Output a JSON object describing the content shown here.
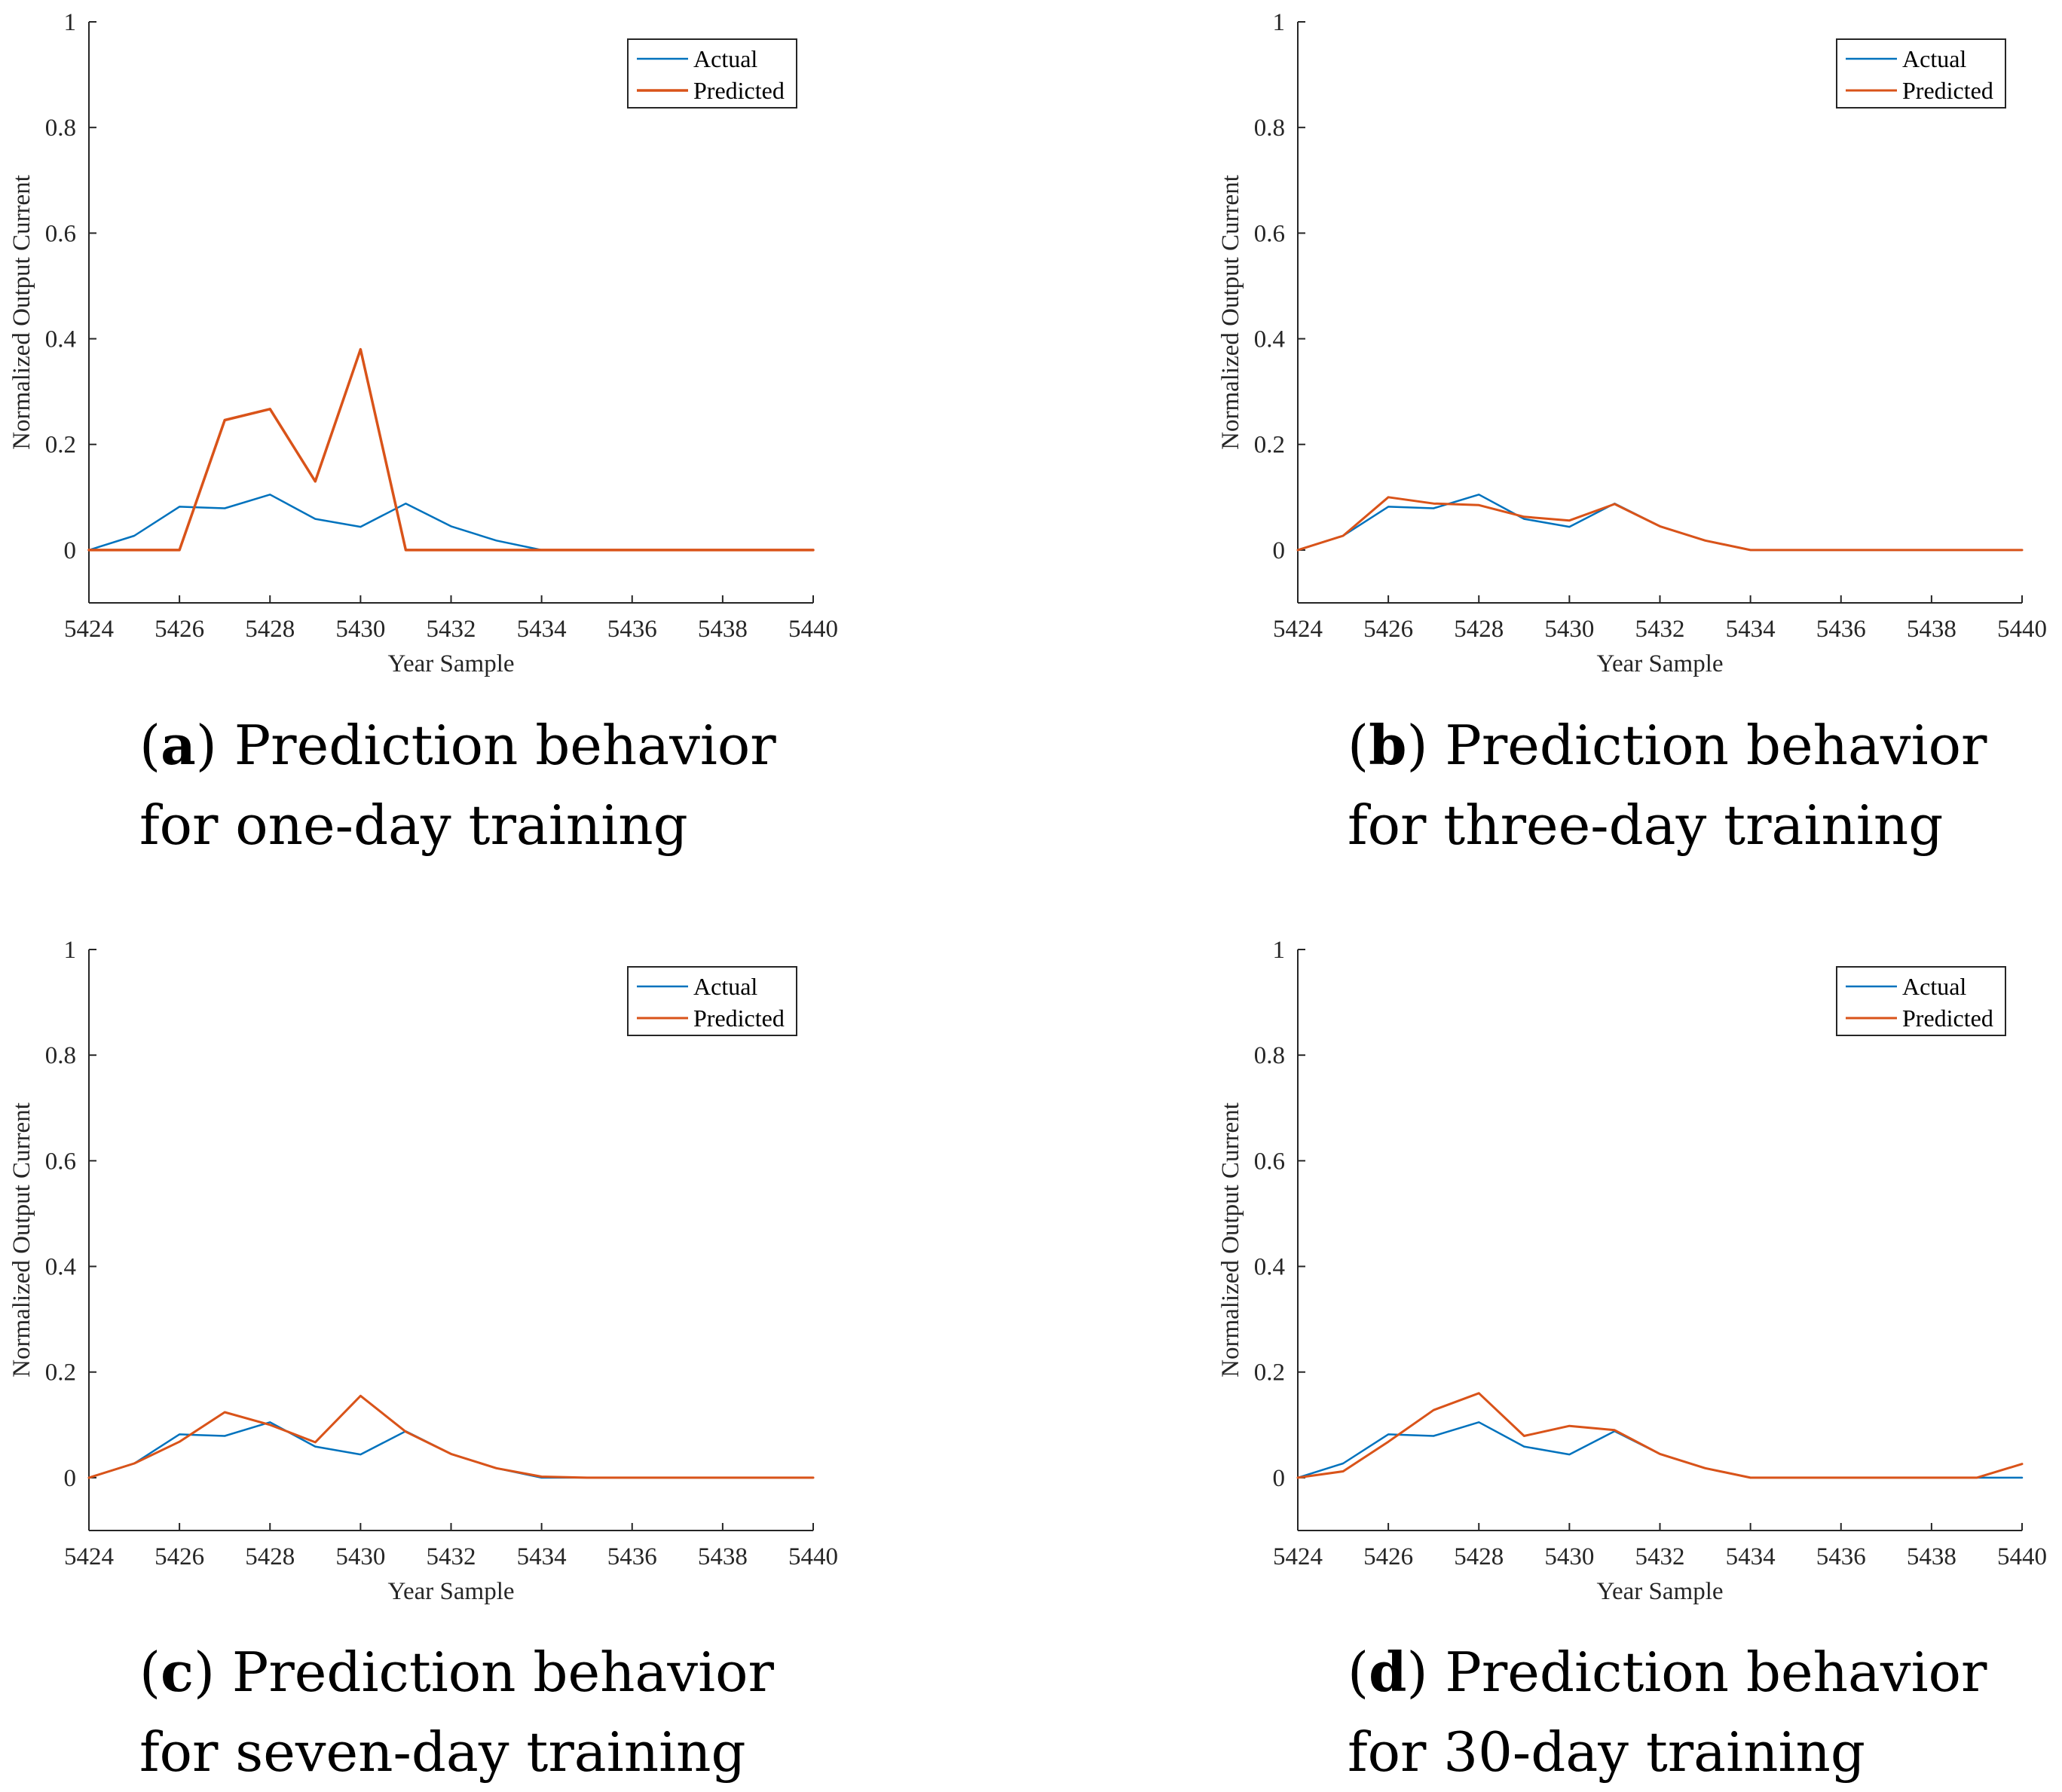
{
  "colors": {
    "actual": "#0072BD",
    "predicted": "#D95319",
    "axis": "#262626"
  },
  "captions": [
    {
      "letter": "a",
      "line1": "Prediction behavior",
      "line2": "for one-day training"
    },
    {
      "letter": "b",
      "line1": "Prediction behavior",
      "line2": "for three-day training"
    },
    {
      "letter": "c",
      "line1": "Prediction behavior",
      "line2": "for seven-day training"
    },
    {
      "letter": "d",
      "line1": "Prediction behavior",
      "line2": "for 30-day training"
    }
  ],
  "chart_data": [
    {
      "type": "line",
      "id": "a",
      "xlabel": "Year Sample",
      "ylabel": "Normalized Output Current",
      "xlim": [
        5424,
        5440
      ],
      "ylim": [
        -0.1,
        1
      ],
      "xticks": [
        5424,
        5426,
        5428,
        5430,
        5432,
        5434,
        5436,
        5438,
        5440
      ],
      "yticks": [
        0,
        0.2,
        0.4,
        0.6,
        0.8,
        1
      ],
      "ytick_labels": [
        "0",
        "0.2",
        "0.4",
        "0.6",
        "0.8",
        "1"
      ],
      "legend_position": "top-right",
      "x": [
        5424,
        5425,
        5426,
        5427,
        5428,
        5429,
        5430,
        5431,
        5432,
        5433,
        5434,
        5435,
        5436,
        5437,
        5438,
        5439,
        5440
      ],
      "series": [
        {
          "name": "Actual",
          "values": [
            0,
            0.027,
            0.082,
            0.079,
            0.105,
            0.059,
            0.044,
            0.088,
            0.045,
            0.018,
            0,
            0,
            0,
            0,
            0,
            0,
            0
          ]
        },
        {
          "name": "Predicted",
          "values": [
            0,
            0,
            0,
            0.246,
            0.267,
            0.13,
            0.38,
            0,
            0,
            0,
            0,
            0,
            0,
            0,
            0,
            0,
            0
          ]
        }
      ]
    },
    {
      "type": "line",
      "id": "b",
      "xlabel": "Year Sample",
      "ylabel": "Normalized Output Current",
      "xlim": [
        5424,
        5440
      ],
      "ylim": [
        -0.1,
        1
      ],
      "xticks": [
        5424,
        5426,
        5428,
        5430,
        5432,
        5434,
        5436,
        5438,
        5440
      ],
      "yticks": [
        0,
        0.2,
        0.4,
        0.6,
        0.8,
        1
      ],
      "ytick_labels": [
        "0",
        "0.2",
        "0.4",
        "0.6",
        "0.8",
        "1"
      ],
      "legend_position": "top-right",
      "x": [
        5424,
        5425,
        5426,
        5427,
        5428,
        5429,
        5430,
        5431,
        5432,
        5433,
        5434,
        5435,
        5436,
        5437,
        5438,
        5439,
        5440
      ],
      "series": [
        {
          "name": "Actual",
          "values": [
            0,
            0.027,
            0.082,
            0.079,
            0.105,
            0.059,
            0.044,
            0.088,
            0.045,
            0.018,
            0,
            0,
            0,
            0,
            0,
            0,
            0
          ]
        },
        {
          "name": "Predicted",
          "values": [
            0,
            0.027,
            0.1,
            0.088,
            0.085,
            0.063,
            0.056,
            0.087,
            0.045,
            0.018,
            0,
            0,
            0,
            0,
            0,
            0,
            0
          ]
        }
      ]
    },
    {
      "type": "line",
      "id": "c",
      "xlabel": "Year Sample",
      "ylabel": "Normalized Output Current",
      "xlim": [
        5424,
        5440
      ],
      "ylim": [
        -0.1,
        1
      ],
      "xticks": [
        5424,
        5426,
        5428,
        5430,
        5432,
        5434,
        5436,
        5438,
        5440
      ],
      "yticks": [
        0,
        0.2,
        0.4,
        0.6,
        0.8,
        1
      ],
      "ytick_labels": [
        "0",
        "0.2",
        "0.4",
        "0.6",
        "0.8",
        "1"
      ],
      "legend_position": "top-right",
      "x": [
        5424,
        5425,
        5426,
        5427,
        5428,
        5429,
        5430,
        5431,
        5432,
        5433,
        5434,
        5435,
        5436,
        5437,
        5438,
        5439,
        5440
      ],
      "series": [
        {
          "name": "Actual",
          "values": [
            0,
            0.027,
            0.082,
            0.079,
            0.105,
            0.059,
            0.044,
            0.088,
            0.045,
            0.018,
            0,
            0,
            0,
            0,
            0,
            0,
            0
          ]
        },
        {
          "name": "Predicted",
          "values": [
            0,
            0.027,
            0.068,
            0.124,
            0.1,
            0.067,
            0.155,
            0.087,
            0.045,
            0.018,
            0.002,
            0,
            0,
            0,
            0,
            0,
            0
          ]
        }
      ]
    },
    {
      "type": "line",
      "id": "d",
      "xlabel": "Year Sample",
      "ylabel": "Normalized Output Current",
      "xlim": [
        5424,
        5440
      ],
      "ylim": [
        -0.1,
        1
      ],
      "xticks": [
        5424,
        5426,
        5428,
        5430,
        5432,
        5434,
        5436,
        5438,
        5440
      ],
      "yticks": [
        0,
        0.2,
        0.4,
        0.6,
        0.8,
        1
      ],
      "ytick_labels": [
        "0",
        "0.2",
        "0.4",
        "0.6",
        "0.8",
        "1"
      ],
      "legend_position": "top-right",
      "x": [
        5424,
        5425,
        5426,
        5427,
        5428,
        5429,
        5430,
        5431,
        5432,
        5433,
        5434,
        5435,
        5436,
        5437,
        5438,
        5439,
        5440
      ],
      "series": [
        {
          "name": "Actual",
          "values": [
            0,
            0.027,
            0.082,
            0.079,
            0.105,
            0.059,
            0.044,
            0.088,
            0.045,
            0.018,
            0,
            0,
            0,
            0,
            0,
            0,
            0
          ]
        },
        {
          "name": "Predicted",
          "values": [
            0,
            0.012,
            0.068,
            0.128,
            0.16,
            0.079,
            0.098,
            0.09,
            0.045,
            0.018,
            0,
            0,
            0,
            0,
            0,
            0,
            0.026
          ]
        }
      ]
    }
  ]
}
